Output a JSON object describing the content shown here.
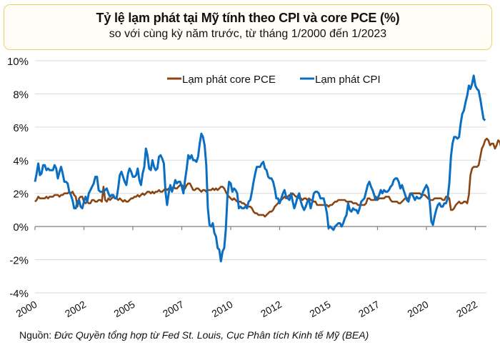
{
  "header": {
    "title": "Tỷ lệ lạm phát tại Mỹ tính theo CPI và core PCE (%)",
    "subtitle": "so với cùng kỳ năm trước, từ tháng 1/2000 đến 1/2023"
  },
  "source": {
    "label": "Nguồn:",
    "text": "Đức Quyền tổng hợp từ Fed St. Louis, Cục Phân tích Kinh tế Mỹ (BEA)"
  },
  "colors": {
    "pce": "#8b4513",
    "cpi": "#0a6fc2",
    "grid": "#d9d9d9",
    "axis": "#7f7f7f"
  },
  "chart_data": {
    "type": "line",
    "title": "Tỷ lệ lạm phát tại Mỹ tính theo CPI và core PCE (%)",
    "subtitle": "so với cùng kỳ năm trước, từ tháng 1/2000 đến 1/2023",
    "xlabel": "",
    "ylabel": "",
    "x_start": "2000-01",
    "x_end": "2023-01",
    "frequency": "monthly",
    "ylim": [
      -4,
      10
    ],
    "y_ticks": [
      -4,
      -2,
      0,
      2,
      4,
      6,
      8,
      10
    ],
    "y_tick_labels": [
      "-4%",
      "-2%",
      "0%",
      "2%",
      "4%",
      "6%",
      "8%",
      "10%"
    ],
    "x_tick_labels": [
      "2000",
      "2002",
      "2005",
      "2007",
      "2010",
      "2012",
      "2015",
      "2017",
      "2020",
      "2022"
    ],
    "x_tick_months": [
      0,
      30,
      60,
      90,
      120,
      150,
      180,
      210,
      240,
      270
    ],
    "grid": true,
    "legend": "top-center",
    "series": [
      {
        "name": "Lạm phát core PCE",
        "color": "#8b4513",
        "values": [
          1.5,
          1.6,
          1.8,
          1.7,
          1.7,
          1.7,
          1.7,
          1.8,
          1.7,
          1.8,
          1.8,
          1.8,
          1.9,
          1.9,
          1.9,
          1.8,
          1.9,
          1.9,
          2.0,
          2.0,
          2.0,
          2.1,
          2.0,
          2.1,
          1.9,
          1.8,
          1.2,
          1.7,
          1.8,
          1.8,
          1.5,
          1.4,
          1.5,
          1.4,
          1.4,
          1.6,
          1.6,
          1.5,
          1.5,
          1.6,
          1.6,
          1.5,
          2.4,
          1.6,
          1.5,
          1.7,
          1.6,
          1.7,
          1.8,
          1.7,
          1.7,
          1.6,
          1.7,
          1.6,
          1.5,
          1.6,
          1.5,
          1.5,
          1.6,
          1.7,
          1.7,
          1.8,
          1.8,
          1.9,
          1.8,
          1.9,
          2.0,
          1.9,
          2.0,
          2.1,
          2.1,
          2.0,
          2.1,
          2.0,
          2.1,
          2.1,
          2.2,
          2.1,
          2.1,
          2.2,
          2.3,
          2.2,
          2.3,
          2.3,
          2.3,
          2.4,
          2.3,
          2.3,
          2.4,
          2.5,
          2.5,
          2.4,
          2.3,
          2.5,
          2.6,
          2.6,
          2.4,
          2.2,
          2.2,
          2.3,
          2.3,
          2.2,
          2.1,
          2.2,
          2.2,
          2.1,
          2.2,
          2.2,
          2.2,
          2.3,
          2.2,
          2.3,
          2.2,
          2.3,
          2.4,
          2.4,
          2.3,
          2.1,
          1.9,
          1.8,
          1.7,
          1.6,
          1.7,
          1.6,
          1.5,
          1.5,
          1.5,
          1.4,
          1.4,
          1.3,
          1.3,
          1.2,
          1.2,
          1.1,
          0.9,
          0.8,
          0.8,
          0.7,
          0.7,
          0.7,
          0.7,
          0.6,
          0.7,
          0.8,
          0.9,
          0.9,
          1.0,
          1.2,
          1.3,
          1.4,
          1.6,
          1.6,
          1.7,
          1.8,
          1.7,
          1.8,
          1.9,
          1.9,
          2.0,
          1.9,
          1.8,
          1.8,
          1.7,
          1.7,
          1.6,
          1.7,
          1.7,
          1.6,
          1.7,
          1.6,
          1.6,
          1.5,
          1.5,
          1.3,
          1.3,
          1.3,
          1.3,
          1.3,
          1.3,
          1.3,
          1.2,
          1.3,
          1.3,
          1.4,
          1.5,
          1.5,
          1.6,
          1.6,
          1.6,
          1.6,
          1.6,
          1.5,
          1.5,
          1.5,
          1.5,
          1.4,
          1.4,
          1.4,
          1.3,
          1.3,
          1.3,
          1.3,
          1.3,
          1.4,
          1.7,
          1.7,
          1.6,
          1.6,
          1.6,
          1.8,
          1.6,
          1.7,
          1.7,
          1.7,
          1.7,
          1.8,
          1.8,
          1.8,
          1.6,
          1.5,
          1.5,
          1.5,
          1.5,
          1.4,
          1.4,
          1.5,
          1.6,
          1.7,
          1.7,
          1.7,
          2.0,
          2.0,
          2.0,
          2.0,
          2.0,
          2.0,
          2.0,
          1.9,
          1.9,
          1.9,
          1.8,
          1.7,
          1.6,
          1.6,
          1.6,
          1.7,
          1.7,
          1.7,
          1.7,
          1.7,
          1.6,
          1.6,
          1.8,
          1.8,
          1.7,
          1.0,
          1.0,
          1.1,
          1.3,
          1.4,
          1.5,
          1.4,
          1.4,
          1.5,
          1.5,
          1.4,
          1.9,
          3.1,
          3.5,
          3.6,
          3.6,
          3.6,
          3.7,
          4.2,
          4.7,
          4.9,
          5.2,
          5.3,
          5.2,
          4.9,
          5.0,
          5.0,
          4.7,
          4.9,
          5.2,
          5.1,
          4.7,
          4.4,
          4.7
        ],
        "ylabel_unit": "%"
      },
      {
        "name": "Lạm phát CPI",
        "color": "#0a6fc2",
        "values": [
          2.7,
          3.2,
          3.8,
          3.1,
          3.2,
          3.7,
          3.7,
          3.4,
          3.5,
          3.4,
          3.4,
          3.4,
          3.7,
          3.5,
          2.9,
          3.3,
          3.6,
          3.2,
          2.7,
          2.7,
          2.6,
          2.1,
          1.9,
          1.6,
          1.1,
          1.1,
          1.5,
          1.6,
          1.2,
          1.1,
          1.5,
          1.8,
          1.5,
          2.0,
          2.2,
          2.4,
          2.6,
          3.0,
          3.0,
          2.2,
          2.1,
          2.1,
          2.1,
          2.2,
          2.3,
          2.0,
          1.8,
          1.9,
          1.9,
          1.7,
          1.7,
          2.3,
          3.1,
          3.3,
          3.0,
          2.7,
          2.5,
          3.2,
          3.5,
          3.3,
          3.0,
          3.0,
          3.1,
          3.5,
          2.8,
          2.5,
          3.2,
          3.6,
          4.7,
          4.3,
          3.5,
          3.4,
          4.0,
          3.6,
          3.4,
          3.5,
          4.2,
          4.3,
          4.1,
          3.8,
          2.1,
          1.3,
          2.0,
          2.5,
          2.1,
          2.4,
          2.8,
          2.6,
          2.7,
          2.7,
          2.4,
          2.0,
          2.8,
          3.5,
          4.3,
          4.1,
          4.3,
          4.0,
          4.0,
          3.9,
          4.2,
          5.0,
          5.6,
          5.4,
          4.9,
          3.7,
          1.1,
          0.1,
          0.0,
          0.2,
          -0.4,
          -0.6,
          -1.3,
          -1.4,
          -2.1,
          -1.5,
          -1.3,
          -0.2,
          1.8,
          2.7,
          2.6,
          2.1,
          2.3,
          2.2,
          2.0,
          1.1,
          1.2,
          1.1,
          1.1,
          1.2,
          1.1,
          1.5,
          1.6,
          2.1,
          2.7,
          3.2,
          3.6,
          3.6,
          3.6,
          3.8,
          3.9,
          3.5,
          3.4,
          3.0,
          2.9,
          2.9,
          2.7,
          2.3,
          1.7,
          1.7,
          1.4,
          1.7,
          2.0,
          2.2,
          1.8,
          1.7,
          1.6,
          2.0,
          1.5,
          1.1,
          1.4,
          1.8,
          2.0,
          1.5,
          1.2,
          1.0,
          1.2,
          1.5,
          1.6,
          1.1,
          1.5,
          2.0,
          2.1,
          2.1,
          2.0,
          1.7,
          1.7,
          1.7,
          1.3,
          0.8,
          -0.1,
          0.0,
          -0.1,
          -0.2,
          0.0,
          0.1,
          0.2,
          0.2,
          0.0,
          0.2,
          0.5,
          0.7,
          1.4,
          1.0,
          0.9,
          1.1,
          1.0,
          1.0,
          0.8,
          1.1,
          1.5,
          1.6,
          1.7,
          2.1,
          2.5,
          2.7,
          2.4,
          2.2,
          1.9,
          1.6,
          1.7,
          1.9,
          2.2,
          2.0,
          2.2,
          2.1,
          2.1,
          2.2,
          2.4,
          2.5,
          2.8,
          2.9,
          2.9,
          2.7,
          2.3,
          2.5,
          2.2,
          1.9,
          1.6,
          1.5,
          1.9,
          2.0,
          1.8,
          1.6,
          1.8,
          1.7,
          1.7,
          1.8,
          2.1,
          2.3,
          2.5,
          2.3,
          1.5,
          0.3,
          0.1,
          0.6,
          1.0,
          1.3,
          1.4,
          1.2,
          1.2,
          1.4,
          1.4,
          1.7,
          2.6,
          4.2,
          5.0,
          5.4,
          5.4,
          5.3,
          5.4,
          6.2,
          6.8,
          7.0,
          7.5,
          7.9,
          8.5,
          8.3,
          8.6,
          9.1,
          8.5,
          8.3,
          8.2,
          7.7,
          7.1,
          6.5,
          6.4
        ],
        "ylabel_unit": "%"
      }
    ]
  }
}
